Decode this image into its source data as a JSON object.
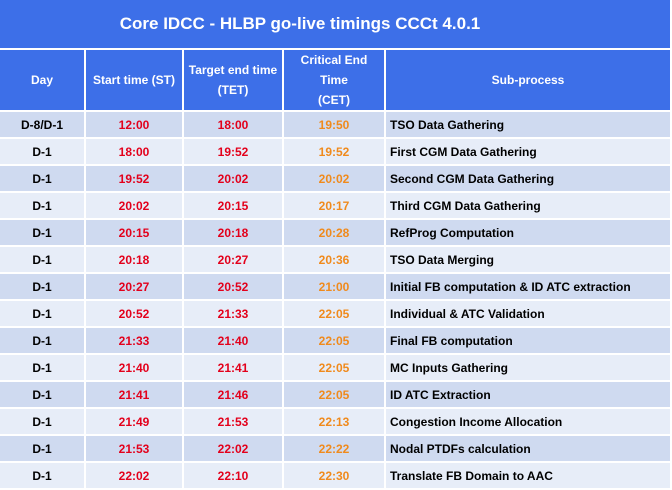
{
  "title": "Core IDCC - HLBP go-live timings CCCt 4.0.1",
  "columns": {
    "day": "Day",
    "start": "Start time (ST)",
    "tet_line1": "Target end time",
    "tet_line2": "(TET)",
    "cet_line1": "Critical End Time",
    "cet_line2": "(CET)",
    "sub": "Sub-process"
  },
  "colors": {
    "header_bg": "#3d6fe8",
    "row_dark": "#cfdaf0",
    "row_light": "#e7edf8",
    "time_red": "#e3001b",
    "time_orange": "#f08a1c"
  },
  "rows": [
    {
      "day": "D-8/D-1",
      "start": "12:00",
      "tet": "18:00",
      "cet": "19:50",
      "sub": "TSO Data Gathering"
    },
    {
      "day": "D-1",
      "start": "18:00",
      "tet": "19:52",
      "cet": "19:52",
      "sub": "First CGM Data Gathering"
    },
    {
      "day": "D-1",
      "start": "19:52",
      "tet": "20:02",
      "cet": "20:02",
      "sub": "Second CGM Data Gathering"
    },
    {
      "day": "D-1",
      "start": "20:02",
      "tet": "20:15",
      "cet": "20:17",
      "sub": "Third CGM Data Gathering"
    },
    {
      "day": "D-1",
      "start": "20:15",
      "tet": "20:18",
      "cet": "20:28",
      "sub": "RefProg Computation"
    },
    {
      "day": "D-1",
      "start": "20:18",
      "tet": "20:27",
      "cet": "20:36",
      "sub": "TSO Data Merging"
    },
    {
      "day": "D-1",
      "start": "20:27",
      "tet": "20:52",
      "cet": "21:00",
      "sub": "Initial FB computation & ID ATC extraction"
    },
    {
      "day": "D-1",
      "start": "20:52",
      "tet": "21:33",
      "cet": "22:05",
      "sub": "Individual & ATC Validation"
    },
    {
      "day": "D-1",
      "start": "21:33",
      "tet": "21:40",
      "cet": "22:05",
      "sub": "Final FB computation"
    },
    {
      "day": "D-1",
      "start": "21:40",
      "tet": "21:41",
      "cet": "22:05",
      "sub": "MC Inputs Gathering"
    },
    {
      "day": "D-1",
      "start": "21:41",
      "tet": "21:46",
      "cet": "22:05",
      "sub": "ID ATC Extraction"
    },
    {
      "day": "D-1",
      "start": "21:49",
      "tet": "21:53",
      "cet": "22:13",
      "sub": "Congestion Income Allocation"
    },
    {
      "day": "D-1",
      "start": "21:53",
      "tet": "22:02",
      "cet": "22:22",
      "sub": "Nodal PTDFs calculation"
    },
    {
      "day": "D-1",
      "start": "22:02",
      "tet": "22:10",
      "cet": "22:30",
      "sub": "Translate FB Domain to AAC"
    }
  ]
}
